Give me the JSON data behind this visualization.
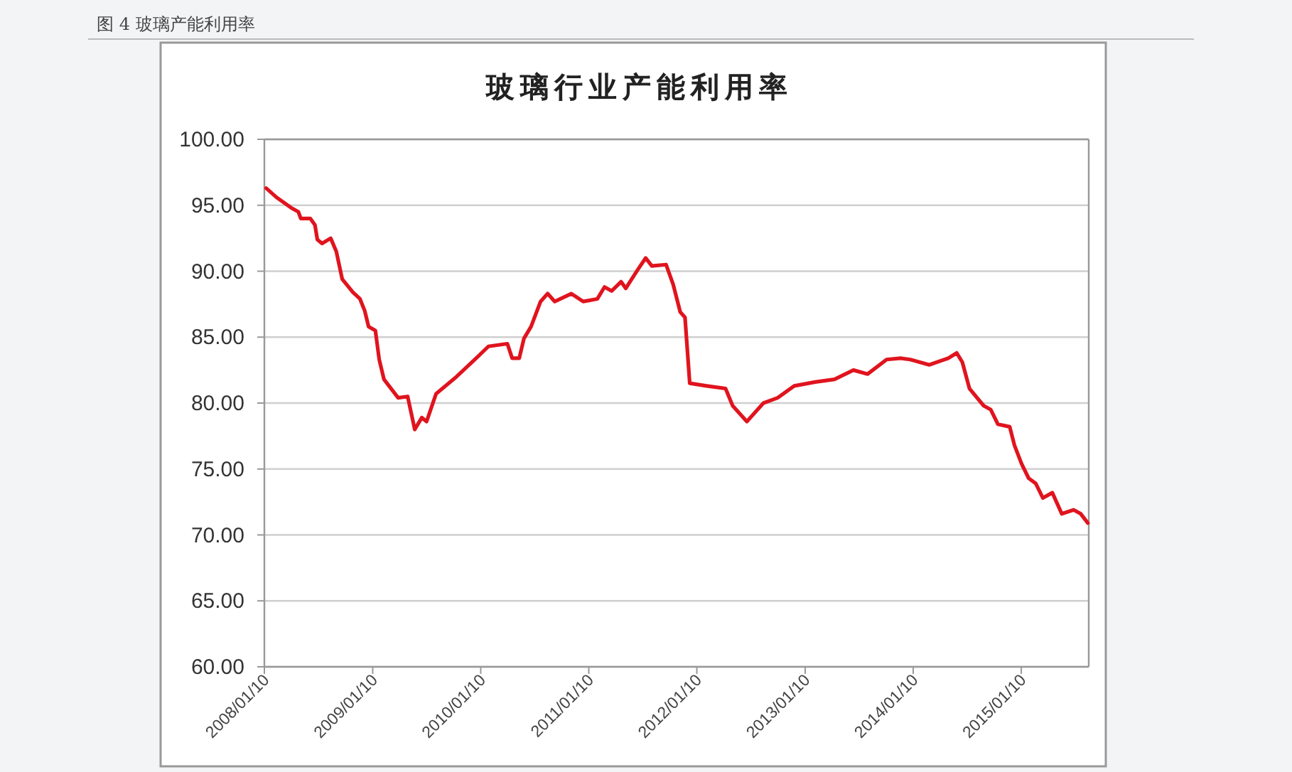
{
  "chart_data": {
    "type": "line",
    "title": "玻璃行业产能利用率",
    "annotations": [
      "图 4 玻璃产能利用率"
    ],
    "x": [
      "2008-01-16",
      "2008-02-20",
      "2008-04-10",
      "2008-05-04",
      "2008-05-12",
      "2008-06-13",
      "2008-06-29",
      "2008-07-07",
      "2008-07-23",
      "2008-08-21",
      "2008-09-09",
      "2008-09-29",
      "2008-11-04",
      "2008-11-28",
      "2008-12-14",
      "2008-12-27",
      "2009-01-19",
      "2009-02-01",
      "2009-02-17",
      "2009-04-06",
      "2009-05-08",
      "2009-06-01",
      "2009-06-25",
      "2009-07-11",
      "2009-08-12",
      "2009-10-20",
      "2010-01-04",
      "2010-02-05",
      "2010-04-10",
      "2010-04-26",
      "2010-05-20",
      "2010-06-05",
      "2010-06-29",
      "2010-07-31",
      "2010-08-24",
      "2010-09-17",
      "2010-11-12",
      "2010-12-22",
      "2011-02-08",
      "2011-03-04",
      "2011-03-28",
      "2011-04-29",
      "2011-05-15",
      "2011-06-24",
      "2011-07-21",
      "2011-08-11",
      "2011-09-28",
      "2011-10-22",
      "2011-11-15",
      "2011-12-01",
      "2011-12-17",
      "2012-02-12",
      "2012-04-16",
      "2012-05-10",
      "2012-06-27",
      "2012-08-22",
      "2012-10-09",
      "2012-12-04",
      "2013-02-13",
      "2013-04-19",
      "2013-06-22",
      "2013-08-09",
      "2013-10-12",
      "2013-11-29",
      "2013-12-31",
      "2014-03-05",
      "2014-05-08",
      "2014-06-06",
      "2014-06-25",
      "2014-07-19",
      "2014-09-05",
      "2014-09-29",
      "2014-10-23",
      "2014-12-02",
      "2014-12-18",
      "2015-01-11",
      "2015-02-04",
      "2015-02-28",
      "2015-03-24",
      "2015-04-25",
      "2015-05-27",
      "2015-07-06",
      "2015-07-30",
      "2015-08-23"
    ],
    "series": [
      {
        "color": "#e0141e",
        "values": [
          96.3,
          95.6,
          94.8,
          94.5,
          94.0,
          94.0,
          93.5,
          92.4,
          92.1,
          92.5,
          91.5,
          89.4,
          88.4,
          87.9,
          87.0,
          85.8,
          85.5,
          83.3,
          81.8,
          80.4,
          80.5,
          78.0,
          78.9,
          78.6,
          80.7,
          82.0,
          83.6,
          84.3,
          84.5,
          83.4,
          83.4,
          84.9,
          85.8,
          87.7,
          88.3,
          87.7,
          88.3,
          87.7,
          87.9,
          88.8,
          88.5,
          89.2,
          88.7,
          90.1,
          91.0,
          90.4,
          90.5,
          89.0,
          86.9,
          86.5,
          81.5,
          81.3,
          81.1,
          79.8,
          78.6,
          80.0,
          80.4,
          81.3,
          81.6,
          81.8,
          82.5,
          82.2,
          83.3,
          83.4,
          83.3,
          82.9,
          83.4,
          83.8,
          83.1,
          81.1,
          79.8,
          79.5,
          78.4,
          78.2,
          76.8,
          75.4,
          74.3,
          73.9,
          72.8,
          73.2,
          71.6,
          71.9,
          71.6,
          70.9
        ]
      }
    ],
    "xlim": [
      "2008-01-10",
      "2015-08-26"
    ],
    "xticks": [
      {
        "value": "2008-01-10",
        "label": "2008/01/10"
      },
      {
        "value": "2009-01-10",
        "label": "2009/01/10"
      },
      {
        "value": "2010-01-10",
        "label": "2010/01/10"
      },
      {
        "value": "2011-01-10",
        "label": "2011/01/10"
      },
      {
        "value": "2012-01-10",
        "label": "2012/01/10"
      },
      {
        "value": "2013-01-10",
        "label": "2013/01/10"
      },
      {
        "value": "2014-01-10",
        "label": "2014/01/10"
      },
      {
        "value": "2015-01-10",
        "label": "2015/01/10"
      }
    ],
    "ylim": [
      60,
      100
    ],
    "yticks": [
      {
        "value": 60,
        "label": "60.00"
      },
      {
        "value": 65,
        "label": "65.00"
      },
      {
        "value": 70,
        "label": "70.00"
      },
      {
        "value": 75,
        "label": "75.00"
      },
      {
        "value": 80,
        "label": "80.00"
      },
      {
        "value": 85,
        "label": "85.00"
      },
      {
        "value": 90,
        "label": "90.00"
      },
      {
        "value": 95,
        "label": "95.00"
      },
      {
        "value": 100,
        "label": "100.00"
      }
    ],
    "grid": "y",
    "marker": "none",
    "line_style": "solid"
  }
}
